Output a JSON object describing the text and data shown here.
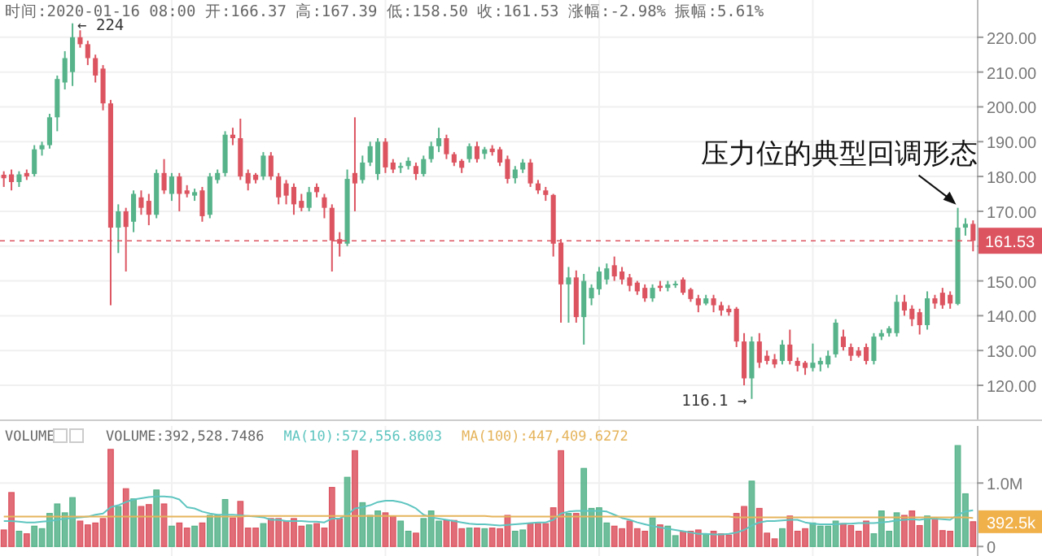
{
  "chart_data": [
    {
      "type": "candlestick",
      "title": "时间:2020-01-16 08:00  开:166.37  高:167.39  低:158.50  收:161.53  涨幅:-2.98%  振幅:5.61%",
      "categories": [
        null,
        null,
        null,
        null,
        null,
        null,
        null,
        null,
        null,
        null,
        null,
        null,
        null,
        null,
        null,
        null,
        null,
        null,
        null,
        null,
        null,
        null,
        null,
        null,
        null,
        null,
        null,
        null,
        null,
        null,
        null,
        null,
        null,
        null,
        null,
        null,
        null,
        null,
        null,
        null,
        null,
        null,
        null,
        null,
        null,
        null,
        null,
        null,
        null,
        null,
        null,
        null,
        null,
        null,
        null,
        null,
        null,
        null,
        null,
        null,
        null,
        null,
        null,
        null,
        null,
        null,
        null,
        null,
        null,
        null,
        null,
        null,
        null,
        null,
        null,
        null,
        null,
        null,
        null,
        null,
        null,
        null,
        null,
        null,
        null,
        null,
        null,
        null,
        null,
        null,
        null,
        null,
        null,
        null,
        null,
        null,
        null,
        null,
        null,
        null,
        null,
        null,
        null,
        null,
        null,
        null,
        null,
        null,
        null,
        null,
        null,
        null,
        null,
        null,
        null,
        null,
        null,
        null,
        null,
        null,
        null,
        null,
        null,
        null,
        null,
        null,
        null,
        null
      ],
      "ohlc": [
        [
          180.5,
          181.5,
          177,
          179.5
        ],
        [
          180.6,
          182,
          176,
          178.4
        ],
        [
          178.4,
          181.5,
          177,
          180.6
        ],
        [
          181,
          182,
          179,
          180
        ],
        [
          180.7,
          189,
          180,
          187.8
        ],
        [
          187.8,
          190,
          186,
          189
        ],
        [
          189,
          198,
          188,
          197
        ],
        [
          197,
          209,
          193,
          208
        ],
        [
          207,
          216,
          205,
          214
        ],
        [
          210,
          224,
          206,
          220
        ],
        [
          220,
          222,
          217,
          218
        ],
        [
          218,
          219,
          212,
          214
        ],
        [
          214,
          215,
          207,
          209
        ],
        [
          211,
          212,
          199,
          201
        ],
        [
          201,
          202,
          143,
          165.3
        ],
        [
          165.3,
          172,
          158,
          170
        ],
        [
          170,
          171,
          152.7,
          165.5
        ],
        [
          167,
          176,
          164,
          175
        ],
        [
          174,
          176,
          169,
          171
        ],
        [
          173,
          175,
          166,
          169
        ],
        [
          169,
          182,
          168,
          181
        ],
        [
          181,
          185,
          175,
          176
        ],
        [
          175,
          181,
          173,
          180
        ],
        [
          180,
          181,
          170,
          175
        ],
        [
          176,
          177.5,
          174,
          175
        ],
        [
          174.5,
          176.5,
          173,
          175.5
        ],
        [
          176,
          177,
          167,
          168.6
        ],
        [
          169,
          181,
          168,
          180
        ],
        [
          179,
          182,
          178,
          181
        ],
        [
          181,
          193,
          180,
          192
        ],
        [
          192,
          194,
          189,
          191
        ],
        [
          191,
          196.6,
          179,
          180
        ],
        [
          181,
          182,
          176,
          178
        ],
        [
          180.5,
          181,
          178,
          179
        ],
        [
          180,
          187,
          179,
          186
        ],
        [
          186,
          187,
          179,
          180
        ],
        [
          180,
          181,
          172,
          174
        ],
        [
          178,
          179,
          172,
          174.5
        ],
        [
          177,
          178,
          169,
          172
        ],
        [
          173,
          175,
          170,
          171
        ],
        [
          171,
          177,
          170,
          175.5
        ],
        [
          177,
          178,
          174,
          175.5
        ],
        [
          174,
          175,
          168,
          171
        ],
        [
          171,
          172,
          152.7,
          161.6
        ],
        [
          162,
          164,
          157,
          160.7
        ],
        [
          160.7,
          182,
          160,
          179.3
        ],
        [
          181,
          197,
          170,
          178
        ],
        [
          179,
          186,
          178,
          184
        ],
        [
          184,
          190,
          183,
          188.7
        ],
        [
          180.7,
          191,
          179,
          190
        ],
        [
          190,
          191,
          181,
          182.6
        ],
        [
          184,
          185,
          181,
          182
        ],
        [
          182.5,
          184,
          181,
          183
        ],
        [
          183,
          185.5,
          182,
          184.5
        ],
        [
          183,
          184,
          179,
          180.7
        ],
        [
          180.7,
          186,
          180,
          185
        ],
        [
          185,
          190,
          184,
          188.7
        ],
        [
          188.7,
          194,
          187,
          191
        ],
        [
          191,
          192,
          185,
          186.4
        ],
        [
          186.4,
          187,
          183,
          184
        ],
        [
          184.5,
          185,
          181,
          182.5
        ],
        [
          185,
          189.5,
          184,
          188.7
        ],
        [
          188.7,
          190,
          184,
          185
        ],
        [
          186.5,
          188.5,
          185,
          187.8
        ],
        [
          188,
          189,
          186,
          187
        ],
        [
          187.8,
          188.5,
          183,
          184
        ],
        [
          185,
          186,
          178,
          179.3
        ],
        [
          179.5,
          183,
          178,
          182
        ],
        [
          182,
          185,
          181,
          184
        ],
        [
          184,
          185,
          177,
          178
        ],
        [
          178,
          179,
          175,
          176
        ],
        [
          176,
          177,
          173,
          174.7
        ],
        [
          174.7,
          175,
          157,
          160.7
        ],
        [
          161,
          162,
          138,
          149
        ],
        [
          149,
          154,
          138,
          151
        ],
        [
          151,
          153,
          138,
          139.6
        ],
        [
          139.6,
          152,
          131.7,
          150
        ],
        [
          145,
          149,
          143,
          148
        ],
        [
          147.6,
          154,
          146,
          152.7
        ],
        [
          150.4,
          155,
          149,
          153.6
        ],
        [
          154.5,
          157,
          150,
          151.3
        ],
        [
          152.7,
          154,
          149,
          150.4
        ],
        [
          151,
          152,
          147,
          148.6
        ],
        [
          149.5,
          150,
          146,
          147
        ],
        [
          148,
          149,
          144,
          145
        ],
        [
          145,
          149,
          144,
          148
        ],
        [
          148.6,
          150,
          147,
          148
        ],
        [
          148,
          150,
          147,
          149
        ],
        [
          148.8,
          150,
          148,
          149.2
        ],
        [
          150.4,
          151,
          146,
          146.6
        ],
        [
          147.6,
          148,
          144,
          144.8
        ],
        [
          145,
          146,
          141,
          143
        ],
        [
          143.5,
          146,
          143,
          145
        ],
        [
          145,
          146,
          141,
          143
        ],
        [
          143,
          144,
          140,
          141.5
        ],
        [
          142,
          143,
          140,
          141
        ],
        [
          142,
          142.5,
          131,
          132.6
        ],
        [
          132.6,
          135,
          120,
          122
        ],
        [
          122,
          134,
          116.1,
          132.6
        ],
        [
          132.6,
          135,
          125,
          126.5
        ],
        [
          128.5,
          130,
          126,
          127
        ],
        [
          127.5,
          129,
          125,
          126
        ],
        [
          127,
          133,
          126,
          131.7
        ],
        [
          131.7,
          136,
          126,
          127
        ],
        [
          127,
          128,
          124,
          125.6
        ],
        [
          126.5,
          127,
          123,
          125
        ],
        [
          125,
          132,
          124,
          126.5
        ],
        [
          126,
          128,
          124,
          127
        ],
        [
          126,
          130,
          125,
          128.5
        ],
        [
          128.9,
          139,
          128,
          138
        ],
        [
          134,
          136,
          130,
          131
        ],
        [
          131,
          132,
          127,
          128.5
        ],
        [
          130,
          131,
          128,
          128.5
        ],
        [
          131,
          132,
          126,
          127
        ],
        [
          127,
          135,
          126,
          134
        ],
        [
          134,
          136,
          133,
          135
        ],
        [
          135,
          137,
          134,
          136.4
        ],
        [
          135,
          146,
          134,
          144
        ],
        [
          144,
          146,
          140,
          141.5
        ],
        [
          142,
          143,
          137,
          139
        ],
        [
          141,
          142,
          134.6,
          137.3
        ],
        [
          137.3,
          147,
          136,
          145
        ],
        [
          145,
          146,
          142,
          143.5
        ],
        [
          146.6,
          148,
          142,
          143
        ],
        [
          146,
          147,
          142,
          143.5
        ],
        [
          143.4,
          171,
          143,
          165.3
        ],
        [
          165.3,
          168,
          163,
          166.4
        ],
        [
          166.37,
          167.39,
          158.5,
          161.53
        ]
      ],
      "colors": [
        "#dc5460",
        "#dc5460",
        "#56b38a",
        "#dc5460",
        "#56b38a",
        "#56b38a",
        "#56b38a",
        "#56b38a",
        "#56b38a",
        "#56b38a",
        "#dc5460",
        "#dc5460",
        "#dc5460",
        "#dc5460",
        "#dc5460",
        "#56b38a",
        "#dc5460",
        "#56b38a",
        "#dc5460",
        "#dc5460",
        "#56b38a",
        "#dc5460",
        "#56b38a",
        "#dc5460",
        "#dc5460",
        "#56b38a",
        "#dc5460",
        "#56b38a",
        "#56b38a",
        "#56b38a",
        "#dc5460",
        "#dc5460",
        "#dc5460",
        "#dc5460",
        "#56b38a",
        "#dc5460",
        "#dc5460",
        "#dc5460",
        "#dc5460",
        "#dc5460",
        "#56b38a",
        "#dc5460",
        "#dc5460",
        "#dc5460",
        "#dc5460",
        "#56b38a",
        "#dc5460",
        "#56b38a",
        "#56b38a",
        "#56b38a",
        "#dc5460",
        "#dc5460",
        "#56b38a",
        "#56b38a",
        "#dc5460",
        "#56b38a",
        "#56b38a",
        "#56b38a",
        "#dc5460",
        "#dc5460",
        "#dc5460",
        "#56b38a",
        "#dc5460",
        "#56b38a",
        "#dc5460",
        "#dc5460",
        "#dc5460",
        "#56b38a",
        "#56b38a",
        "#dc5460",
        "#dc5460",
        "#dc5460",
        "#dc5460",
        "#dc5460",
        "#56b38a",
        "#dc5460",
        "#56b38a",
        "#56b38a",
        "#56b38a",
        "#56b38a",
        "#dc5460",
        "#dc5460",
        "#dc5460",
        "#dc5460",
        "#dc5460",
        "#56b38a",
        "#dc5460",
        "#56b38a",
        "#56b38a",
        "#dc5460",
        "#dc5460",
        "#dc5460",
        "#56b38a",
        "#dc5460",
        "#dc5460",
        "#dc5460",
        "#dc5460",
        "#dc5460",
        "#56b38a",
        "#dc5460",
        "#dc5460",
        "#dc5460",
        "#56b38a",
        "#dc5460",
        "#dc5460",
        "#dc5460",
        "#56b38a",
        "#56b38a",
        "#56b38a",
        "#56b38a",
        "#dc5460",
        "#dc5460",
        "#dc5460",
        "#dc5460",
        "#56b38a",
        "#56b38a",
        "#56b38a",
        "#56b38a",
        "#dc5460",
        "#dc5460",
        "#dc5460",
        "#56b38a",
        "#dc5460",
        "#dc5460",
        "#dc5460",
        "#56b38a",
        "#56b38a",
        "#dc5460"
      ],
      "ylim": [
        110.2,
        230.7
      ],
      "yticks": [
        {
          "value": 120,
          "label": "120.00"
        },
        {
          "value": 130,
          "label": "130.00"
        },
        {
          "value": 140,
          "label": "140.00"
        },
        {
          "value": 150,
          "label": "150.00"
        },
        {
          "value": 160,
          "label": null
        },
        {
          "value": 170,
          "label": "170.00"
        },
        {
          "value": 180,
          "label": "180.00"
        },
        {
          "value": 190,
          "label": "190.00"
        },
        {
          "value": 200,
          "label": "200.00"
        },
        {
          "value": 210,
          "label": "210.00"
        },
        {
          "value": 220,
          "label": "220.00"
        }
      ],
      "grid": true,
      "ref_lines": [
        {
          "axis": "y",
          "value": 161.53,
          "label": "161.53",
          "color": "#dc5460",
          "line_style": "dashed"
        }
      ],
      "annotations": [
        "← 224",
        "116.1 →",
        "压力位的典型回调形态"
      ]
    },
    {
      "type": "bar",
      "title": "VOLUME",
      "categories": [
        null,
        null,
        null,
        null,
        null,
        null,
        null,
        null,
        null,
        null,
        null,
        null,
        null,
        null,
        null,
        null,
        null,
        null,
        null,
        null,
        null,
        null,
        null,
        null,
        null,
        null,
        null,
        null,
        null,
        null,
        null,
        null,
        null,
        null,
        null,
        null,
        null,
        null,
        null,
        null,
        null,
        null,
        null,
        null,
        null,
        null,
        null,
        null,
        null,
        null,
        null,
        null,
        null,
        null,
        null,
        null,
        null,
        null,
        null,
        null,
        null,
        null,
        null,
        null,
        null,
        null,
        null,
        null,
        null,
        null,
        null,
        null,
        null,
        null,
        null,
        null,
        null,
        null,
        null,
        null,
        null,
        null,
        null,
        null,
        null,
        null,
        null,
        null,
        null,
        null,
        null,
        null,
        null,
        null,
        null,
        null,
        null,
        null,
        null,
        null,
        null,
        null,
        null,
        null,
        null,
        null,
        null,
        null,
        null,
        null,
        null,
        null,
        null,
        null,
        null,
        null,
        null,
        null,
        null,
        null,
        null,
        null,
        null,
        null,
        null,
        null,
        null,
        null
      ],
      "series": [
        {
          "name": "VOLUME:392,528.7486",
          "type": "bar",
          "colors": [
            "#dc5460",
            "#dc5460",
            "#56b38a",
            "#dc5460",
            "#56b38a",
            "#56b38a",
            "#56b38a",
            "#56b38a",
            "#56b38a",
            "#56b38a",
            "#dc5460",
            "#dc5460",
            "#dc5460",
            "#dc5460",
            "#dc5460",
            "#56b38a",
            "#dc5460",
            "#56b38a",
            "#dc5460",
            "#dc5460",
            "#56b38a",
            "#dc5460",
            "#56b38a",
            "#dc5460",
            "#dc5460",
            "#56b38a",
            "#dc5460",
            "#56b38a",
            "#56b38a",
            "#56b38a",
            "#dc5460",
            "#dc5460",
            "#dc5460",
            "#dc5460",
            "#56b38a",
            "#dc5460",
            "#dc5460",
            "#dc5460",
            "#dc5460",
            "#dc5460",
            "#56b38a",
            "#dc5460",
            "#dc5460",
            "#dc5460",
            "#dc5460",
            "#56b38a",
            "#dc5460",
            "#56b38a",
            "#56b38a",
            "#56b38a",
            "#dc5460",
            "#dc5460",
            "#56b38a",
            "#56b38a",
            "#dc5460",
            "#56b38a",
            "#56b38a",
            "#56b38a",
            "#dc5460",
            "#dc5460",
            "#dc5460",
            "#56b38a",
            "#dc5460",
            "#56b38a",
            "#dc5460",
            "#dc5460",
            "#dc5460",
            "#56b38a",
            "#56b38a",
            "#dc5460",
            "#dc5460",
            "#dc5460",
            "#dc5460",
            "#dc5460",
            "#56b38a",
            "#dc5460",
            "#56b38a",
            "#56b38a",
            "#56b38a",
            "#56b38a",
            "#dc5460",
            "#dc5460",
            "#dc5460",
            "#dc5460",
            "#dc5460",
            "#56b38a",
            "#dc5460",
            "#56b38a",
            "#56b38a",
            "#dc5460",
            "#dc5460",
            "#dc5460",
            "#56b38a",
            "#dc5460",
            "#dc5460",
            "#dc5460",
            "#dc5460",
            "#dc5460",
            "#56b38a",
            "#dc5460",
            "#dc5460",
            "#dc5460",
            "#56b38a",
            "#dc5460",
            "#dc5460",
            "#dc5460",
            "#56b38a",
            "#56b38a",
            "#56b38a",
            "#56b38a",
            "#dc5460",
            "#dc5460",
            "#dc5460",
            "#dc5460",
            "#56b38a",
            "#56b38a",
            "#56b38a",
            "#56b38a",
            "#dc5460",
            "#dc5460",
            "#dc5460",
            "#56b38a",
            "#dc5460",
            "#dc5460",
            "#dc5460",
            "#56b38a",
            "#56b38a",
            "#dc5460"
          ],
          "values": [
            0.26,
            0.85,
            0.24,
            0.2,
            0.32,
            0.28,
            0.52,
            0.67,
            0.53,
            0.77,
            0.4,
            0.34,
            0.37,
            0.44,
            1.53,
            0.63,
            0.91,
            0.75,
            0.63,
            0.66,
            0.89,
            0.67,
            0.32,
            0.37,
            0.29,
            0.32,
            0.37,
            0.49,
            0.49,
            0.74,
            0.45,
            0.71,
            0.29,
            0.29,
            0.36,
            0.44,
            0.44,
            0.4,
            0.44,
            0.32,
            0.34,
            0.36,
            0.29,
            0.93,
            0.44,
            1.09,
            1.51,
            0.69,
            0.49,
            0.56,
            0.53,
            0.48,
            0.4,
            0.24,
            0.21,
            0.44,
            0.56,
            0.4,
            0.41,
            0.41,
            0.28,
            0.29,
            0.29,
            0.28,
            0.29,
            0.28,
            0.49,
            0.24,
            0.26,
            0.36,
            0.36,
            0.36,
            0.61,
            1.51,
            0.52,
            0.52,
            1.23,
            0.6,
            0.61,
            0.37,
            0.32,
            0.28,
            0.4,
            0.28,
            0.24,
            0.45,
            0.34,
            0.32,
            0.17,
            0.24,
            0.24,
            0.26,
            0.2,
            0.24,
            0.2,
            0.18,
            0.52,
            0.63,
            1.03,
            0.6,
            0.21,
            0.12,
            0.28,
            0.48,
            0.24,
            0.28,
            0.37,
            0.32,
            0.32,
            0.4,
            0.36,
            0.33,
            0.24,
            0.4,
            0.2,
            0.56,
            0.24,
            0.53,
            0.49,
            0.56,
            0.33,
            0.48,
            0.44,
            0.25,
            0.24,
            1.59,
            0.83,
            0.39
          ]
        },
        {
          "name": "MA(10):572,556.8603",
          "type": "line",
          "color": "#5ec5c0",
          "values": [
            0.4,
            0.4,
            0.39,
            0.38,
            0.38,
            0.39,
            0.4,
            0.42,
            0.44,
            0.45,
            0.46,
            0.47,
            0.5,
            0.52,
            0.62,
            0.65,
            0.7,
            0.74,
            0.76,
            0.78,
            0.79,
            0.79,
            0.78,
            0.74,
            0.62,
            0.6,
            0.55,
            0.52,
            0.5,
            0.5,
            0.5,
            0.49,
            0.48,
            0.47,
            0.46,
            0.42,
            0.42,
            0.4,
            0.4,
            0.4,
            0.39,
            0.39,
            0.38,
            0.44,
            0.44,
            0.5,
            0.6,
            0.62,
            0.65,
            0.7,
            0.72,
            0.72,
            0.7,
            0.66,
            0.6,
            0.5,
            0.46,
            0.44,
            0.42,
            0.4,
            0.38,
            0.36,
            0.35,
            0.35,
            0.34,
            0.33,
            0.34,
            0.35,
            0.36,
            0.37,
            0.38,
            0.38,
            0.42,
            0.52,
            0.55,
            0.56,
            0.56,
            0.56,
            0.56,
            0.55,
            0.5,
            0.45,
            0.42,
            0.38,
            0.35,
            0.32,
            0.3,
            0.28,
            0.26,
            0.24,
            0.22,
            0.2,
            0.2,
            0.19,
            0.19,
            0.2,
            0.22,
            0.26,
            0.33,
            0.38,
            0.4,
            0.4,
            0.41,
            0.42,
            0.42,
            0.38,
            0.36,
            0.35,
            0.35,
            0.35,
            0.36,
            0.36,
            0.37,
            0.37,
            0.37,
            0.38,
            0.39,
            0.41,
            0.42,
            0.43,
            0.42,
            0.44,
            0.44,
            0.43,
            0.42,
            0.5,
            0.55,
            0.57
          ]
        },
        {
          "name": "MA(100):447,409.6272",
          "type": "line",
          "color": "#e5b45c",
          "values": [
            0.47,
            0.47,
            0.47,
            0.47,
            0.47,
            0.47,
            0.47,
            0.47,
            0.47,
            0.47,
            0.47,
            0.47,
            0.47,
            0.47,
            0.47,
            0.47,
            0.47,
            0.47,
            0.47,
            0.47,
            0.47,
            0.47,
            0.47,
            0.47,
            0.47,
            0.47,
            0.47,
            0.47,
            0.47,
            0.47,
            0.47,
            0.47,
            0.48,
            0.48,
            0.48,
            0.48,
            0.48,
            0.48,
            0.48,
            0.48,
            0.48,
            0.48,
            0.48,
            0.48,
            0.48,
            0.48,
            0.48,
            0.48,
            0.48,
            0.48,
            0.48,
            0.48,
            0.48,
            0.48,
            0.48,
            0.48,
            0.48,
            0.48,
            0.48,
            0.48,
            0.48,
            0.48,
            0.48,
            0.48,
            0.47,
            0.47,
            0.47,
            0.47,
            0.47,
            0.47,
            0.47,
            0.47,
            0.47,
            0.47,
            0.47,
            0.47,
            0.47,
            0.47,
            0.47,
            0.47,
            0.47,
            0.47,
            0.47,
            0.47,
            0.47,
            0.47,
            0.47,
            0.47,
            0.47,
            0.47,
            0.47,
            0.47,
            0.47,
            0.47,
            0.47,
            0.47,
            0.46,
            0.46,
            0.46,
            0.46,
            0.46,
            0.46,
            0.46,
            0.46,
            0.46,
            0.46,
            0.46,
            0.46,
            0.46,
            0.46,
            0.46,
            0.46,
            0.46,
            0.46,
            0.46,
            0.46,
            0.46,
            0.46,
            0.46,
            0.46,
            0.46,
            0.46,
            0.46,
            0.46,
            0.46,
            0.46,
            0.46,
            0.45
          ]
        }
      ],
      "ylim": [
        -0.15,
        1.9
      ],
      "yticks": [
        0,
        {
          "value": 1,
          "label": "1.0M"
        }
      ],
      "grid": true,
      "legend": "top left",
      "annotations": [
        "392.5k"
      ]
    }
  ]
}
